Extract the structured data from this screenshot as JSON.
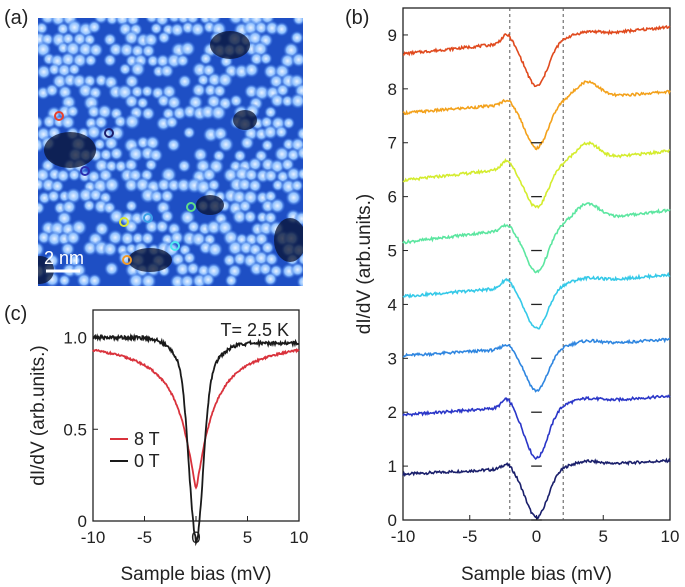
{
  "panels": {
    "a": "(a)",
    "b": "(b)",
    "c": "(c)"
  },
  "stm_image": {
    "scale_bar_label": "2 nm",
    "markers": [
      {
        "name": "red-marker",
        "color": "#e8402c"
      },
      {
        "name": "navy-marker",
        "color": "#1c1f6e"
      },
      {
        "name": "blue-marker",
        "color": "#2a2fb0"
      },
      {
        "name": "yellow-marker",
        "color": "#d9e63a"
      },
      {
        "name": "lightblue-marker",
        "color": "#3aa0e8"
      },
      {
        "name": "green-marker",
        "color": "#5fdc8a"
      },
      {
        "name": "cyan-marker",
        "color": "#4fe6ef"
      },
      {
        "name": "orange-marker",
        "color": "#f09a2a"
      }
    ]
  },
  "chart_data": [
    {
      "id": "b",
      "type": "line",
      "xlabel": "Sample bias (mV)",
      "ylabel": "dI/dV (arb.units.)",
      "xlim": [
        -10,
        10
      ],
      "ylim": [
        0,
        9.5
      ],
      "xticks": [
        "-10",
        "-5",
        "0",
        "5",
        "10"
      ],
      "yticks": [
        "0",
        "1",
        "2",
        "3",
        "4",
        "5",
        "6",
        "7",
        "8",
        "9"
      ],
      "vlines": [
        -2,
        2
      ],
      "series": [
        {
          "name": "navy",
          "color": "#1a1f6b",
          "offset": 0,
          "baseline_left": 0.85,
          "baseline_right": 1.1,
          "min": 0.05
        },
        {
          "name": "blue",
          "color": "#2a36c8",
          "offset": 1,
          "baseline_left": 1.95,
          "baseline_right": 2.3,
          "min": 1.15
        },
        {
          "name": "lightblue",
          "color": "#2f86e0",
          "offset": 2,
          "baseline_left": 3.05,
          "baseline_right": 3.35,
          "min": 2.4
        },
        {
          "name": "cyan",
          "color": "#35c9e8",
          "offset": 3,
          "baseline_left": 4.15,
          "baseline_right": 4.55,
          "min": 3.55
        },
        {
          "name": "green",
          "color": "#5ce6a0",
          "offset": 4,
          "baseline_left": 5.15,
          "baseline_right": 5.75,
          "min": 4.6
        },
        {
          "name": "yellow",
          "color": "#d4ec2e",
          "offset": 5,
          "baseline_left": 6.3,
          "baseline_right": 6.85,
          "min": 5.8
        },
        {
          "name": "orange",
          "color": "#f3a11b",
          "offset": 6,
          "baseline_left": 7.55,
          "baseline_right": 7.95,
          "min": 6.9
        },
        {
          "name": "red",
          "color": "#e04a1e",
          "offset": 7,
          "baseline_left": 8.65,
          "baseline_right": 9.15,
          "min": 8.05
        }
      ]
    },
    {
      "id": "c",
      "type": "line",
      "title": "T= 2.5 K",
      "xlabel": "Sample bias (mV)",
      "ylabel": "dI/dV (arb.units.)",
      "xlim": [
        -10,
        10
      ],
      "ylim": [
        0,
        1.15
      ],
      "xticks": [
        "-10",
        "-5",
        "0",
        "5",
        "10"
      ],
      "yticks": [
        "0",
        "0.5",
        "1.0"
      ],
      "series": [
        {
          "name": "8 T",
          "color": "#d9323c",
          "baseline": 1.0,
          "min": 0.18
        },
        {
          "name": "0 T",
          "color": "#1a1a1a",
          "baseline": 1.0,
          "min": 0.08
        }
      ]
    }
  ]
}
